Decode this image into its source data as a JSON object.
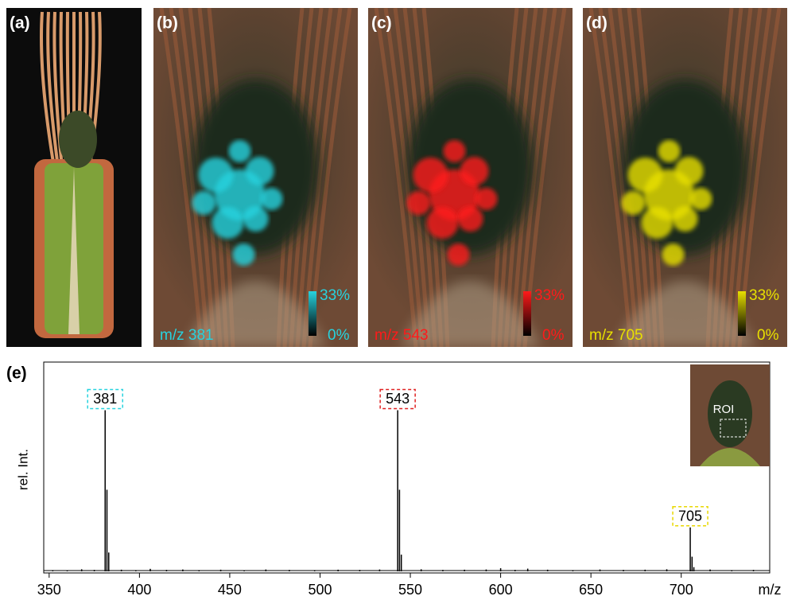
{
  "panels": [
    {
      "label": "(a)"
    },
    {
      "label": "(b)",
      "caption": "m/z 381",
      "scale_max": "33%",
      "scale_min": "0%",
      "color": "#27d3df"
    },
    {
      "label": "(c)",
      "caption": "m/z 543",
      "scale_max": "33%",
      "scale_min": "0%",
      "color": "#ff1a1a"
    },
    {
      "label": "(d)",
      "caption": "m/z 705",
      "scale_max": "33%",
      "scale_min": "0%",
      "color": "#e8e000"
    }
  ],
  "chart_data": {
    "type": "spectrum",
    "label": "(e)",
    "xlabel": "m/z",
    "ylabel": "rel. Int.",
    "x": [
      352,
      360,
      368,
      375,
      381,
      382,
      383,
      390,
      398,
      406,
      415,
      424,
      433,
      445,
      458,
      470,
      483,
      497,
      510,
      522,
      533,
      543,
      544,
      545,
      556,
      568,
      580,
      592,
      600,
      608,
      615,
      626,
      640,
      655,
      668,
      680,
      692,
      705,
      706,
      707,
      716,
      728,
      740
    ],
    "values": [
      0.6,
      0.5,
      1,
      0.7,
      77,
      39,
      9,
      0.8,
      0.6,
      1.2,
      0.7,
      0.9,
      0.6,
      0.8,
      0.5,
      0.9,
      0.7,
      0.6,
      0.8,
      0.7,
      0.9,
      77,
      39,
      8,
      1,
      0.7,
      0.8,
      0.9,
      1.5,
      0.7,
      1.3,
      0.8,
      0.6,
      0.9,
      0.7,
      0.8,
      1,
      21,
      7,
      2,
      0.9,
      0.6,
      0.7
    ],
    "color": "#000000",
    "annotations": [
      {
        "text": "381",
        "x": 381,
        "y": 77,
        "color": "#27d3df"
      },
      {
        "text": "543",
        "x": 543,
        "y": 77,
        "color": "#e02020"
      },
      {
        "text": "705",
        "x": 705,
        "y": 21,
        "color": "#e8d800"
      }
    ],
    "xlim": [
      347,
      749
    ],
    "ylim": [
      0,
      100
    ],
    "xticks": [
      350,
      400,
      450,
      500,
      550,
      600,
      650,
      700
    ],
    "inset_label": "ROI"
  }
}
